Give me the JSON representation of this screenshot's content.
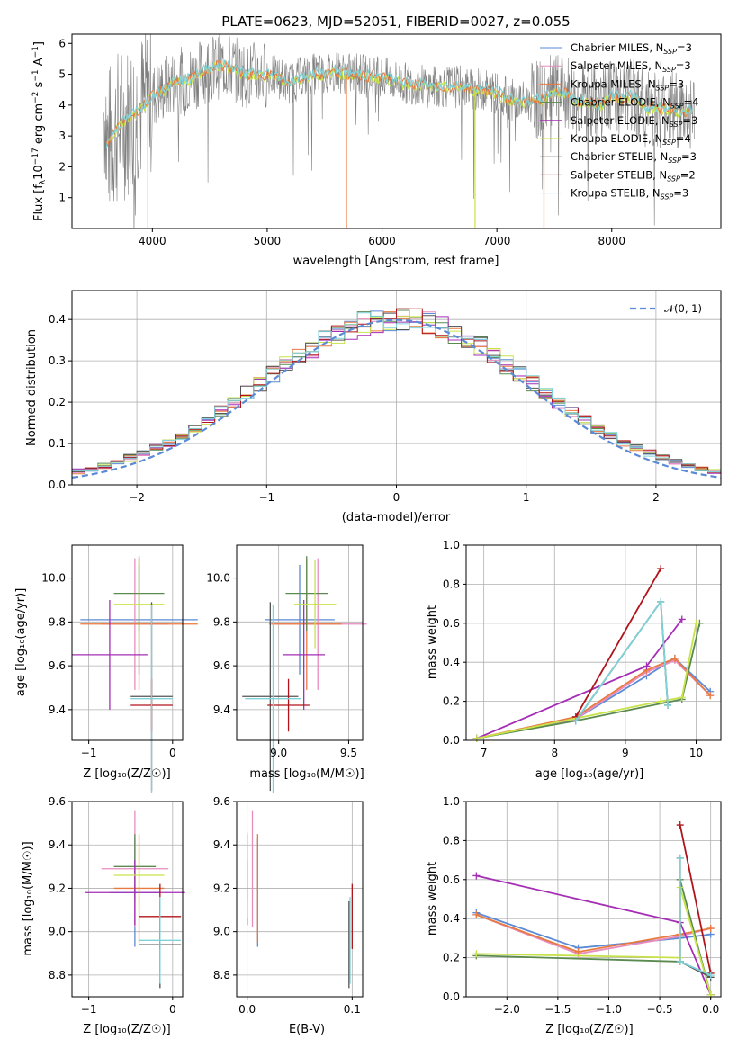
{
  "colors": {
    "Chabrier MILES": "#5b8ad6",
    "Salpeter MILES": "#e88cbf",
    "Kroupa MILES": "#e87a3f",
    "Chabrier ELODIE": "#5a8a50",
    "Salpeter ELODIE": "#a52db5",
    "Kroupa ELODIE": "#c8e34a",
    "Chabrier STELIB": "#545454",
    "Salpeter STELIB": "#b0141a",
    "Kroupa STELIB": "#7fd3d8",
    "data": "#808080",
    "normal": "#5b8ad6"
  },
  "chart_data": [
    {
      "id": "spectrum",
      "type": "line",
      "title": "PLATE=0623, MJD=52051, FIBERID=0027, z=0.055",
      "xlabel": "wavelength [Angstrom, rest frame]",
      "ylabel": "Flux [f_λ10^-17 erg cm^-2 s^-1 A^-1]",
      "xlim": [
        3300,
        8950
      ],
      "ylim": [
        0,
        6.3
      ],
      "xticks": [
        "4000",
        "5000",
        "6000",
        "7000",
        "8000"
      ],
      "yticks": [
        "1",
        "2",
        "3",
        "4",
        "5",
        "6"
      ],
      "legend_position": "top-right",
      "legend": [
        {
          "label": "Chabrier MILES, N",
          "sub": "SSP",
          "eq": "=3"
        },
        {
          "label": "Salpeter MILES, N",
          "sub": "SSP",
          "eq": "=3"
        },
        {
          "label": "Kroupa MILES, N",
          "sub": "SSP",
          "eq": "=3"
        },
        {
          "label": "Chabrier ELODIE, N",
          "sub": "SSP",
          "eq": "=4"
        },
        {
          "label": "Salpeter ELODIE, N",
          "sub": "SSP",
          "eq": "=3"
        },
        {
          "label": "Kroupa ELODIE, N",
          "sub": "SSP",
          "eq": "=4"
        },
        {
          "label": "Chabrier STELIB, N",
          "sub": "SSP",
          "eq": "=3"
        },
        {
          "label": "Salpeter STELIB, N",
          "sub": "SSP",
          "eq": "=2"
        },
        {
          "label": "Kroupa STELIB, N",
          "sub": "SSP",
          "eq": "=3"
        }
      ],
      "model_continuum": [
        [
          3600,
          2.7
        ],
        [
          3700,
          3.3
        ],
        [
          3800,
          3.6
        ],
        [
          3900,
          3.9
        ],
        [
          4000,
          4.3
        ],
        [
          4100,
          4.5
        ],
        [
          4200,
          4.8
        ],
        [
          4300,
          4.8
        ],
        [
          4400,
          5.0
        ],
        [
          4500,
          5.2
        ],
        [
          4600,
          5.3
        ],
        [
          4700,
          5.2
        ],
        [
          4800,
          5.0
        ],
        [
          4900,
          5.0
        ],
        [
          5000,
          5.0
        ],
        [
          5100,
          4.9
        ],
        [
          5200,
          4.7
        ],
        [
          5300,
          4.9
        ],
        [
          5400,
          5.0
        ],
        [
          5500,
          5.0
        ],
        [
          5600,
          5.1
        ],
        [
          5700,
          5.0
        ],
        [
          5800,
          5.0
        ],
        [
          5900,
          4.9
        ],
        [
          6000,
          4.9
        ],
        [
          6100,
          4.8
        ],
        [
          6200,
          4.7
        ],
        [
          6300,
          4.7
        ],
        [
          6400,
          4.6
        ],
        [
          6500,
          4.6
        ],
        [
          6600,
          4.6
        ],
        [
          6700,
          4.6
        ],
        [
          6800,
          4.5
        ],
        [
          6900,
          4.5
        ],
        [
          7000,
          4.4
        ],
        [
          7100,
          4.2
        ],
        [
          7200,
          4.1
        ],
        [
          7300,
          4.1
        ],
        [
          7400,
          4.2
        ],
        [
          7500,
          4.4
        ],
        [
          7600,
          4.4
        ],
        [
          7700,
          4.1
        ],
        [
          7800,
          4.1
        ],
        [
          7900,
          4.0
        ],
        [
          8000,
          4.3
        ],
        [
          8100,
          4.2
        ],
        [
          8200,
          4.3
        ],
        [
          8300,
          3.9
        ],
        [
          8400,
          3.9
        ],
        [
          8500,
          3.9
        ],
        [
          8600,
          3.8
        ],
        [
          8700,
          3.8
        ]
      ]
    },
    {
      "id": "residuals",
      "type": "area",
      "xlabel": "(data-model)/error",
      "ylabel": "Normed distribution",
      "xlim": [
        -2.5,
        2.5
      ],
      "ylim": [
        0,
        0.47
      ],
      "xticks": [
        "−2",
        "−1",
        "0",
        "1",
        "2"
      ],
      "yticks": [
        "0.0",
        "0.1",
        "0.2",
        "0.3",
        "0.4"
      ],
      "grid": true,
      "legend_position": "top-right",
      "legend": [
        "𝒩(0, 1)"
      ],
      "bin_width": 0.1
    },
    {
      "id": "age-vs-Z",
      "type": "scatter",
      "xlabel": "Z [log₁₀(Z/Z☉)]",
      "ylabel": "age  [log₁₀(age/yr)]",
      "xlim": [
        -1.2,
        0.12
      ],
      "ylim": [
        9.26,
        10.15
      ],
      "xticks": [
        "−1",
        "0"
      ],
      "yticks": [
        "9.4",
        "9.6",
        "9.8",
        "10.0"
      ],
      "grid": true,
      "points": [
        {
          "model": "Chabrier MILES",
          "x": -0.4,
          "xerr": 0.7,
          "y": 9.81,
          "yerr": 0.25
        },
        {
          "model": "Salpeter MILES",
          "x": -0.45,
          "xerr": 0.4,
          "y": 9.79,
          "yerr": 0.3
        },
        {
          "model": "Kroupa MILES",
          "x": -0.4,
          "xerr": 0.7,
          "y": 9.79,
          "yerr": 0.3
        },
        {
          "model": "Chabrier ELODIE",
          "x": -0.4,
          "xerr": 0.3,
          "y": 9.93,
          "yerr": 0.17
        },
        {
          "model": "Salpeter ELODIE",
          "x": -0.75,
          "xerr": 0.45,
          "y": 9.65,
          "yerr": 0.25
        },
        {
          "model": "Kroupa ELODIE",
          "x": -0.4,
          "xerr": 0.3,
          "y": 9.88,
          "yerr": 0.2
        },
        {
          "model": "Chabrier STELIB",
          "x": -0.25,
          "xerr": 0.25,
          "y": 9.46,
          "yerr": 0.43
        },
        {
          "model": "Salpeter STELIB",
          "x": -0.25,
          "xerr": 0.25,
          "y": 9.42,
          "yerr": 0.12
        },
        {
          "model": "Kroupa STELIB",
          "x": -0.25,
          "xerr": 0.25,
          "y": 9.45,
          "yerr": 0.43
        }
      ]
    },
    {
      "id": "age-vs-mass",
      "type": "scatter",
      "xlabel": "mass [log₁₀(M/M☉)]",
      "xlim": [
        8.7,
        9.6
      ],
      "ylim": [
        9.26,
        10.15
      ],
      "xticks": [
        "9.0",
        "9.5"
      ],
      "yticks": [
        "9.4",
        "9.6",
        "9.8",
        "10.0"
      ],
      "grid": true,
      "points": [
        {
          "model": "Chabrier MILES",
          "x": 9.15,
          "xerr": 0.25,
          "y": 9.81,
          "yerr": 0.25
        },
        {
          "model": "Salpeter MILES",
          "x": 9.28,
          "xerr": 0.35,
          "y": 9.79,
          "yerr": 0.3
        },
        {
          "model": "Kroupa MILES",
          "x": 9.2,
          "xerr": 0.25,
          "y": 9.79,
          "yerr": 0.3
        },
        {
          "model": "Chabrier ELODIE",
          "x": 9.2,
          "xerr": 0.15,
          "y": 9.93,
          "yerr": 0.17
        },
        {
          "model": "Salpeter ELODIE",
          "x": 9.18,
          "xerr": 0.15,
          "y": 9.65,
          "yerr": 0.25
        },
        {
          "model": "Kroupa ELODIE",
          "x": 9.26,
          "xerr": 0.15,
          "y": 9.88,
          "yerr": 0.2
        },
        {
          "model": "Chabrier STELIB",
          "x": 8.94,
          "xerr": 0.2,
          "y": 9.46,
          "yerr": 0.43
        },
        {
          "model": "Salpeter STELIB",
          "x": 9.07,
          "xerr": 0.15,
          "y": 9.42,
          "yerr": 0.12
        },
        {
          "model": "Kroupa STELIB",
          "x": 8.96,
          "xerr": 0.2,
          "y": 9.45,
          "yerr": 0.43
        }
      ]
    },
    {
      "id": "weight-vs-age",
      "type": "line",
      "xlabel": "age  [log₁₀(age/yr)]",
      "ylabel": "mass weight",
      "xlim": [
        6.75,
        10.35
      ],
      "ylim": [
        0,
        1.0
      ],
      "xticks": [
        "7",
        "8",
        "9",
        "10"
      ],
      "yticks": [
        "0.0",
        "0.2",
        "0.4",
        "0.6",
        "0.8",
        "1.0"
      ],
      "grid": true,
      "series": [
        {
          "model": "Chabrier MILES",
          "x": [
            6.9,
            8.3,
            9.3,
            9.7,
            10.2
          ],
          "y": [
            0.01,
            0.11,
            0.33,
            0.42,
            0.25
          ]
        },
        {
          "model": "Salpeter MILES",
          "x": [
            6.9,
            8.3,
            9.3,
            9.7,
            10.2
          ],
          "y": [
            0.01,
            0.11,
            0.35,
            0.41,
            0.23
          ]
        },
        {
          "model": "Kroupa MILES",
          "x": [
            6.9,
            8.3,
            9.3,
            9.7,
            10.2
          ],
          "y": [
            0.01,
            0.12,
            0.36,
            0.42,
            0.23
          ]
        },
        {
          "model": "Chabrier ELODIE",
          "x": [
            6.9,
            8.3,
            9.8,
            10.05
          ],
          "y": [
            0.01,
            0.1,
            0.21,
            0.6
          ]
        },
        {
          "model": "Salpeter ELODIE",
          "x": [
            6.9,
            9.3,
            9.8
          ],
          "y": [
            0.01,
            0.38,
            0.62
          ]
        },
        {
          "model": "Kroupa ELODIE",
          "x": [
            6.9,
            9.5,
            9.8,
            10.0
          ],
          "y": [
            0.01,
            0.2,
            0.22,
            0.6
          ]
        },
        {
          "model": "Chabrier STELIB",
          "x": [
            8.3,
            9.5,
            9.6
          ],
          "y": [
            0.1,
            0.71,
            0.18
          ]
        },
        {
          "model": "Salpeter STELIB",
          "x": [
            8.3,
            9.5
          ],
          "y": [
            0.12,
            0.88
          ]
        },
        {
          "model": "Kroupa STELIB",
          "x": [
            8.3,
            9.5,
            9.6
          ],
          "y": [
            0.1,
            0.71,
            0.18
          ]
        }
      ]
    },
    {
      "id": "mass-vs-Z",
      "type": "scatter",
      "xlabel": "Z [log₁₀(Z/Z☉)]",
      "ylabel": "mass [log₁₀(M/M☉)]",
      "xlim": [
        -1.2,
        0.12
      ],
      "ylim": [
        8.7,
        9.6
      ],
      "xticks": [
        "−1",
        "0"
      ],
      "yticks": [
        "8.8",
        "9.0",
        "9.2",
        "9.4",
        "9.6"
      ],
      "grid": true,
      "points": [
        {
          "model": "Chabrier MILES",
          "x": -0.45,
          "xerr": 0.3,
          "y": 9.18,
          "yerr": 0.25
        },
        {
          "model": "Salpeter MILES",
          "x": -0.45,
          "xerr": 0.4,
          "y": 9.29,
          "yerr": 0.27
        },
        {
          "model": "Kroupa MILES",
          "x": -0.4,
          "xerr": 0.3,
          "y": 9.2,
          "yerr": 0.25
        },
        {
          "model": "Chabrier ELODIE",
          "x": -0.45,
          "xerr": 0.25,
          "y": 9.3,
          "yerr": 0.15
        },
        {
          "model": "Salpeter ELODIE",
          "x": -0.45,
          "xerr": 0.6,
          "y": 9.18,
          "yerr": 0.15
        },
        {
          "model": "Kroupa ELODIE",
          "x": -0.4,
          "xerr": 0.3,
          "y": 9.26,
          "yerr": 0.15
        },
        {
          "model": "Chabrier STELIB",
          "x": -0.15,
          "xerr": 0.25,
          "y": 8.94,
          "yerr": 0.2
        },
        {
          "model": "Salpeter STELIB",
          "x": -0.15,
          "xerr": 0.25,
          "y": 9.07,
          "yerr": 0.15
        },
        {
          "model": "Kroupa STELIB",
          "x": -0.15,
          "xerr": 0.25,
          "y": 8.96,
          "yerr": 0.2
        }
      ]
    },
    {
      "id": "mass-vs-EBV",
      "type": "scatter",
      "xlabel": "E(B-V)",
      "xlim": [
        -0.01,
        0.11
      ],
      "ylim": [
        8.7,
        9.6
      ],
      "xticks": [
        "0.0",
        "0.1"
      ],
      "yticks": [
        "8.8",
        "9.0",
        "9.2",
        "9.4",
        "9.6"
      ],
      "grid": true,
      "points": [
        {
          "model": "Chabrier MILES",
          "x": 0.01,
          "y": 9.18,
          "yerr": 0.25
        },
        {
          "model": "Salpeter MILES",
          "x": 0.005,
          "y": 9.29,
          "yerr": 0.27
        },
        {
          "model": "Kroupa MILES",
          "x": 0.01,
          "y": 9.2,
          "yerr": 0.25
        },
        {
          "model": "Chabrier ELODIE",
          "x": 0.0,
          "y": 9.3,
          "yerr": 0.15
        },
        {
          "model": "Salpeter ELODIE",
          "x": 0.0,
          "y": 9.18,
          "yerr": 0.15
        },
        {
          "model": "Kroupa ELODIE",
          "x": 0.0,
          "y": 9.26,
          "yerr": 0.2
        },
        {
          "model": "Chabrier STELIB",
          "x": 0.097,
          "y": 8.94,
          "yerr": 0.2
        },
        {
          "model": "Salpeter STELIB",
          "x": 0.1,
          "y": 9.07,
          "yerr": 0.15
        },
        {
          "model": "Kroupa STELIB",
          "x": 0.098,
          "y": 8.96,
          "yerr": 0.2
        }
      ]
    },
    {
      "id": "weight-vs-Z",
      "type": "line",
      "xlabel": "Z [log₁₀(Z/Z☉)]",
      "ylabel": "mass weight",
      "xlim": [
        -2.4,
        0.1
      ],
      "ylim": [
        0,
        1.0
      ],
      "xticks": [
        "−2.0",
        "−1.5",
        "−1.0",
        "−0.5",
        "0.0"
      ],
      "yticks": [
        "0.0",
        "0.2",
        "0.4",
        "0.6",
        "0.8",
        "1.0"
      ],
      "grid": true,
      "series": [
        {
          "model": "Chabrier MILES",
          "x": [
            -2.3,
            -1.3,
            -0.3,
            0.0
          ],
          "y": [
            0.43,
            0.25,
            0.3,
            0.32
          ]
        },
        {
          "model": "Salpeter MILES",
          "x": [
            -2.3,
            -1.3,
            -0.3,
            0.0
          ],
          "y": [
            0.42,
            0.22,
            0.31,
            0.35
          ]
        },
        {
          "model": "Kroupa MILES",
          "x": [
            -2.3,
            -1.3,
            -0.3,
            0.0
          ],
          "y": [
            0.42,
            0.23,
            0.32,
            0.35
          ]
        },
        {
          "model": "Chabrier ELODIE",
          "x": [
            -2.3,
            -0.3,
            -0.3,
            0.0
          ],
          "y": [
            0.21,
            0.18,
            0.6,
            0.01
          ]
        },
        {
          "model": "Salpeter ELODIE",
          "x": [
            -2.3,
            -0.3,
            0.0
          ],
          "y": [
            0.62,
            0.38,
            0.01
          ]
        },
        {
          "model": "Kroupa ELODIE",
          "x": [
            -2.3,
            -0.3,
            -0.3,
            0.0
          ],
          "y": [
            0.22,
            0.2,
            0.56,
            0.01
          ]
        },
        {
          "model": "Chabrier STELIB",
          "x": [
            -0.3,
            -0.3,
            0.0
          ],
          "y": [
            0.71,
            0.18,
            0.1
          ]
        },
        {
          "model": "Salpeter STELIB",
          "x": [
            -0.3,
            0.0
          ],
          "y": [
            0.88,
            0.12
          ]
        },
        {
          "model": "Kroupa STELIB",
          "x": [
            -0.3,
            -0.3,
            0.0
          ],
          "y": [
            0.71,
            0.18,
            0.11
          ]
        }
      ]
    }
  ]
}
